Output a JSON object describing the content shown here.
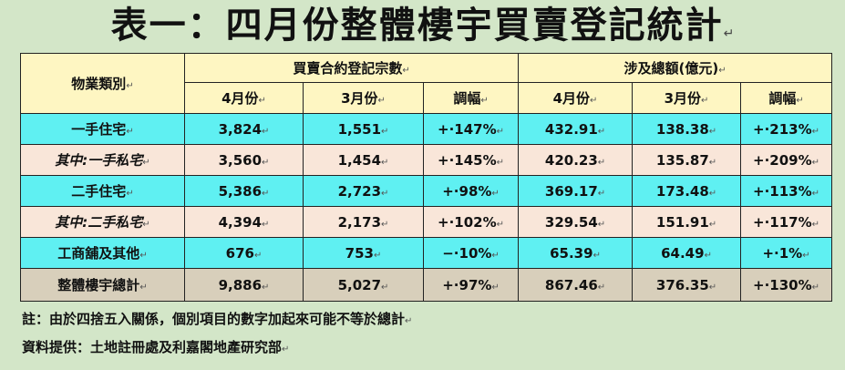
{
  "title": "表一：四月份整體樓宇買賣登記統計",
  "title_mark": "↵",
  "cell_mark": "↵",
  "headers": {
    "category": "物業類別",
    "group1": "買賣合約登記宗數",
    "group2": "涉及總額(億元)",
    "apr": "4月份",
    "mar": "3月份",
    "change": "調幅"
  },
  "rows": [
    {
      "label": "一手住宅",
      "count_apr": "3,824",
      "count_mar": "1,551",
      "count_chg": "+·147%",
      "amt_apr": "432.91",
      "amt_mar": "138.38",
      "amt_chg": "+·213%"
    },
    {
      "label": "其中:一手私宅",
      "count_apr": "3,560",
      "count_mar": "1,454",
      "count_chg": "+·145%",
      "amt_apr": "420.23",
      "amt_mar": "135.87",
      "amt_chg": "+·209%"
    },
    {
      "label": "二手住宅",
      "count_apr": "5,386",
      "count_mar": "2,723",
      "count_chg": "+·98%",
      "amt_apr": "369.17",
      "amt_mar": "173.48",
      "amt_chg": "+·113%"
    },
    {
      "label": "其中:二手私宅",
      "count_apr": "4,394",
      "count_mar": "2,173",
      "count_chg": "+·102%",
      "amt_apr": "329.54",
      "amt_mar": "151.91",
      "amt_chg": "+·117%"
    },
    {
      "label": "工商舖及其他",
      "count_apr": "676",
      "count_mar": "753",
      "count_chg": "−·10%",
      "amt_apr": "65.39",
      "amt_mar": "64.49",
      "amt_chg": "+·1%"
    },
    {
      "label": "整體樓宇總計",
      "count_apr": "9,886",
      "count_mar": "5,027",
      "count_chg": "+·97%",
      "amt_apr": "867.46",
      "amt_mar": "376.35",
      "amt_chg": "+·130%"
    }
  ],
  "notes": {
    "note": "註：由於四捨五入關係，個別項目的數字加起來可能不等於總計",
    "source": "資料提供：土地註冊處及利嘉閣地產研究部"
  },
  "colors": {
    "background": "#d3e6c8",
    "header": "#fef6c2",
    "primary_row": "#5ff0f2",
    "sub_row": "#f9e6d9",
    "total_row": "#d8cfbb"
  }
}
